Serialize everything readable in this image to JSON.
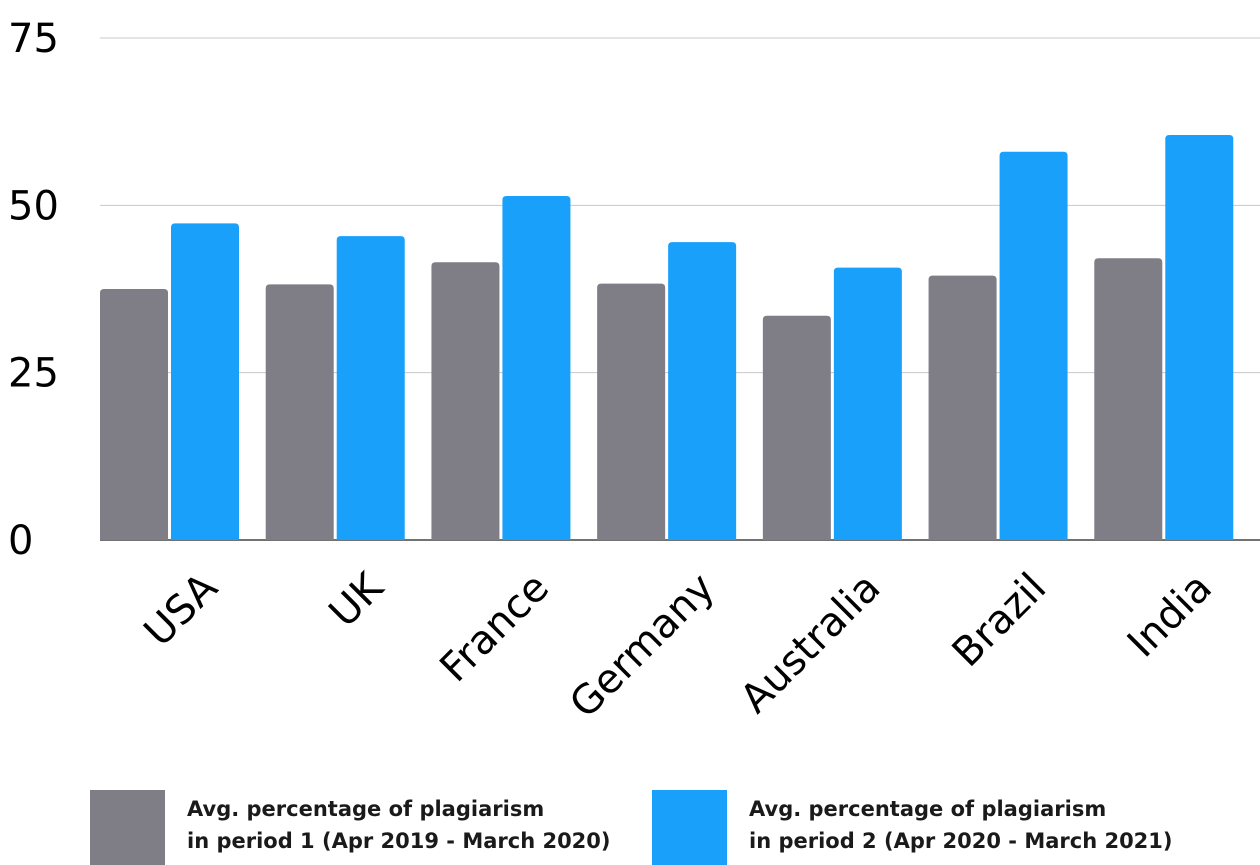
{
  "chart_data": {
    "type": "bar",
    "categories": [
      "USA",
      "UK",
      "France",
      "Germany",
      "Australia",
      "Brazil",
      "India"
    ],
    "series": [
      {
        "name": "Avg. percentage of plagiarism in period 1 (Apr 2019 - March 2020)",
        "name_lines": [
          "Avg. percentage of plagiarism",
          "in period 1 (Apr 2019 - March 2020)"
        ],
        "color": "#7f7e87",
        "values": [
          37.5,
          38.2,
          41.5,
          38.3,
          33.5,
          39.5,
          42.1
        ]
      },
      {
        "name": "Avg. percentage of plagiarism in period 2 (Apr 2020 - March 2021)",
        "name_lines": [
          "Avg. percentage of plagiarism",
          "in period 2 (Apr 2020 - March 2021)"
        ],
        "color": "#18a0fb",
        "values": [
          47.3,
          45.4,
          51.4,
          44.5,
          40.7,
          58.0,
          60.5
        ]
      }
    ],
    "yticks": [
      "0",
      "25",
      "50",
      "75"
    ],
    "ylim": [
      0,
      75
    ],
    "grid": true,
    "legend_position": "bottom"
  }
}
